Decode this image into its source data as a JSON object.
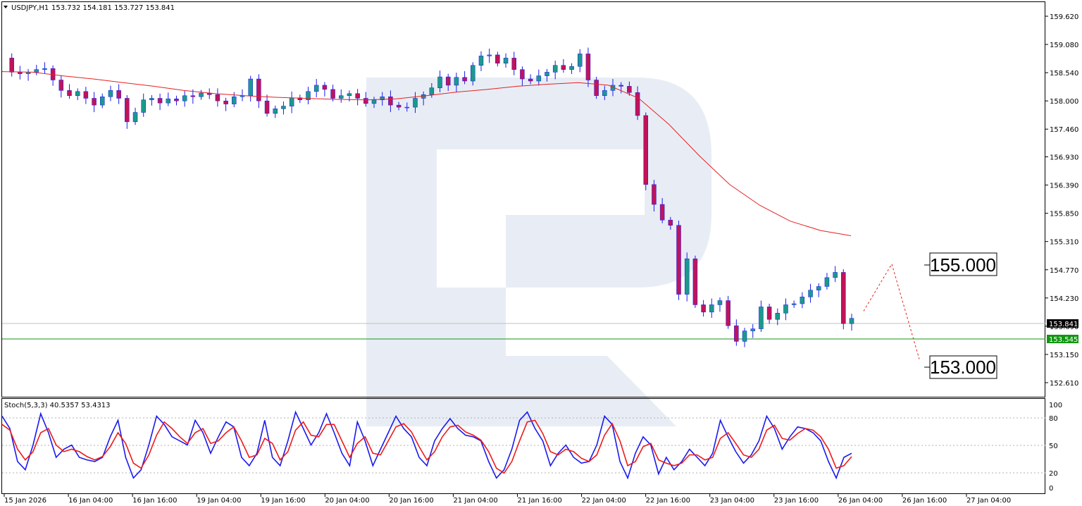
{
  "header": {
    "symbol": "USDJPY,H1",
    "ohlc": "153.732 154.181 153.727 153.841",
    "dropdown_icon": "triangle-down-icon"
  },
  "indicator": {
    "label": "Stoch(5,3,3) 40.5357 53.4313",
    "levels": [
      "100",
      "80",
      "50",
      "20",
      "0"
    ]
  },
  "colors": {
    "bull": "#1a9a8a",
    "bear": "#c0135a",
    "ma": "#e82020",
    "stoch_main": "#1a1aee",
    "stoch_signal": "#ee1a1a",
    "support_line": "#129612",
    "price_tag_bg": "#000000",
    "support_tag_bg": "#129612",
    "watermark": "#e8edf5"
  },
  "chart_data": {
    "type": "candlestick",
    "title": "USDJPY,H1",
    "ylim": [
      152.34,
      159.89
    ],
    "y_ticks": [
      "159.620",
      "159.080",
      "158.540",
      "158.000",
      "157.460",
      "156.930",
      "156.390",
      "155.850",
      "155.310",
      "154.770",
      "154.230",
      "153.690",
      "153.150",
      "152.610"
    ],
    "x_ticks": [
      "15 Jan 2026",
      "16 Jan 04:00",
      "16 Jan 16:00",
      "19 Jan 04:00",
      "19 Jan 16:00",
      "20 Jan 04:00",
      "20 Jan 16:00",
      "21 Jan 04:00",
      "21 Jan 16:00",
      "22 Jan 04:00",
      "22 Jan 16:00",
      "23 Jan 04:00",
      "23 Jan 16:00",
      "26 Jan 04:00",
      "26 Jan 16:00",
      "27 Jan 04:00"
    ],
    "current_price": "153.841",
    "support_price": "153.545",
    "target_labels": [
      "155.000",
      "153.000"
    ],
    "forecast_path": [
      153.98,
      154.88,
      153.06
    ],
    "close_path": [
      158.82,
      158.55,
      158.52,
      158.55,
      158.6,
      158.62,
      158.4,
      158.2,
      158.1,
      158.18,
      158.05,
      157.92,
      158.08,
      158.2,
      158.05,
      157.6,
      157.78,
      158.02,
      158.05,
      157.96,
      158.04,
      158.0,
      158.1,
      158.08,
      158.15,
      158.12,
      158.0,
      157.94,
      158.08,
      158.1,
      158.42,
      158.0,
      157.76,
      157.85,
      157.9,
      158.06,
      158.02,
      158.18,
      158.3,
      158.22,
      158.05,
      158.1,
      158.14,
      158.05,
      157.95,
      158.02,
      158.08,
      157.92,
      157.88,
      157.88,
      158.05,
      158.12,
      158.25,
      158.46,
      158.3,
      158.45,
      158.38,
      158.68,
      158.86,
      158.88,
      158.72,
      158.82,
      158.6,
      158.42,
      158.38,
      158.48,
      158.55,
      158.68,
      158.6,
      158.66,
      158.9,
      158.4,
      158.1,
      158.2,
      158.3,
      158.28,
      158.16,
      157.72,
      156.4,
      156.02,
      155.72,
      155.62,
      154.3,
      154.98,
      154.1,
      153.96,
      154.1,
      154.18,
      153.7,
      153.4,
      153.6,
      153.64,
      154.06,
      153.82,
      153.94,
      154.1,
      154.12,
      154.25,
      154.38,
      154.45,
      154.62,
      154.72,
      153.74,
      153.84
    ],
    "ma_path": [
      158.56,
      158.55,
      158.48,
      158.42,
      158.35,
      158.28,
      158.2,
      158.14,
      158.1,
      158.07,
      158.05,
      158.03,
      158.02,
      158.04,
      158.1,
      158.17,
      158.22,
      158.28,
      158.32,
      158.35,
      158.3,
      158.05,
      157.55,
      156.95,
      156.4,
      156.0,
      155.7,
      155.52,
      155.42
    ],
    "stoch_main": [
      85,
      70,
      30,
      20,
      50,
      88,
      65,
      35,
      45,
      50,
      35,
      32,
      30,
      35,
      60,
      80,
      35,
      10,
      20,
      50,
      85,
      75,
      60,
      55,
      50,
      80,
      65,
      40,
      60,
      78,
      72,
      35,
      25,
      40,
      80,
      35,
      25,
      55,
      90,
      70,
      50,
      65,
      88,
      65,
      40,
      25,
      78,
      55,
      25,
      45,
      65,
      85,
      70,
      60,
      35,
      25,
      55,
      70,
      82,
      70,
      62,
      60,
      55,
      30,
      10,
      20,
      45,
      80,
      90,
      70,
      55,
      25,
      40,
      50,
      35,
      28,
      30,
      50,
      85,
      75,
      30,
      10,
      40,
      60,
      50,
      15,
      35,
      20,
      30,
      45,
      35,
      25,
      40,
      80,
      60,
      42,
      28,
      38,
      55,
      85,
      70,
      45,
      60,
      72,
      70,
      65,
      55,
      30,
      10,
      35,
      40
    ],
    "stoch_signal": [
      75,
      68,
      45,
      32,
      42,
      65,
      70,
      50,
      42,
      45,
      42,
      36,
      32,
      36,
      48,
      65,
      52,
      28,
      22,
      38,
      62,
      78,
      70,
      60,
      52,
      65,
      70,
      52,
      55,
      65,
      72,
      55,
      35,
      38,
      58,
      52,
      32,
      42,
      68,
      78,
      62,
      60,
      75,
      75,
      55,
      35,
      52,
      60,
      40,
      38,
      55,
      72,
      76,
      66,
      48,
      32,
      42,
      60,
      72,
      74,
      66,
      62,
      56,
      42,
      22,
      16,
      30,
      55,
      78,
      80,
      64,
      42,
      38,
      45,
      42,
      34,
      30,
      38,
      62,
      76,
      55,
      25,
      30,
      48,
      52,
      32,
      28,
      25,
      28,
      38,
      38,
      32,
      35,
      58,
      65,
      52,
      38,
      35,
      45,
      68,
      74,
      58,
      56,
      64,
      70,
      68,
      60,
      45,
      22,
      25,
      36
    ]
  }
}
